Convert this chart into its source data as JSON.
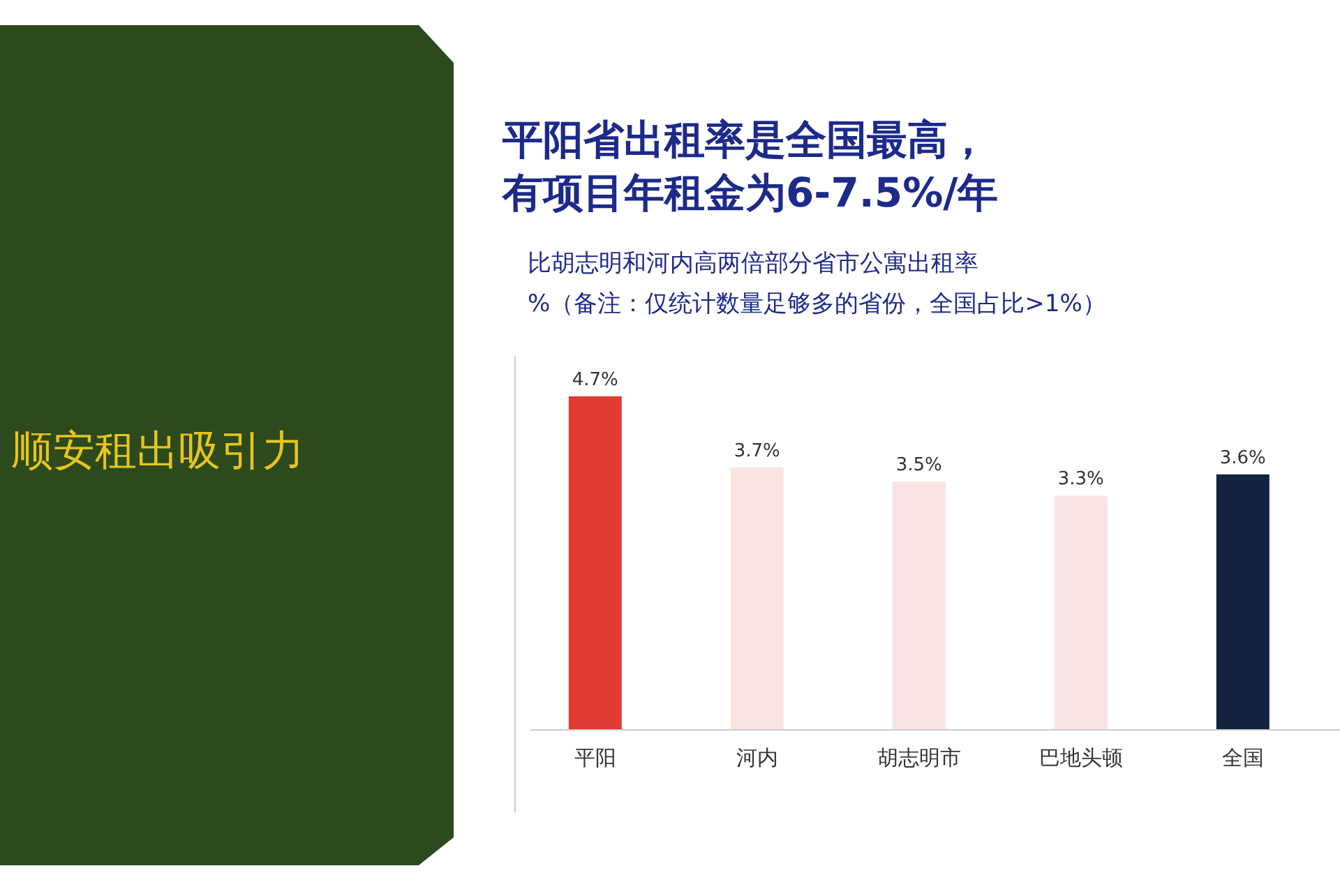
{
  "chart_data": {
    "type": "bar",
    "title": "顺安租出吸引力",
    "subtitle": "平阳省出租率是全国最高，有项目年租金为6-7.5%/年",
    "annotations": [
      "比胡志明和河内高两倍部分省市公寓出租率",
      "%（备注：仅统计数量足够多的省份，全国占比>1%）"
    ],
    "categories": [
      "平阳",
      "河内",
      "胡志明市",
      "巴地头顿",
      "全国"
    ],
    "values": [
      4.7,
      3.7,
      3.5,
      3.3,
      3.6
    ],
    "value_labels": [
      "4.7%",
      "3.7%",
      "3.5%",
      "3.3%",
      "3.6%"
    ],
    "colors": [
      "#e03a33",
      "#fbe3e4",
      "#fbe3e4",
      "#fbe3e4",
      "#13233f"
    ]
  }
}
